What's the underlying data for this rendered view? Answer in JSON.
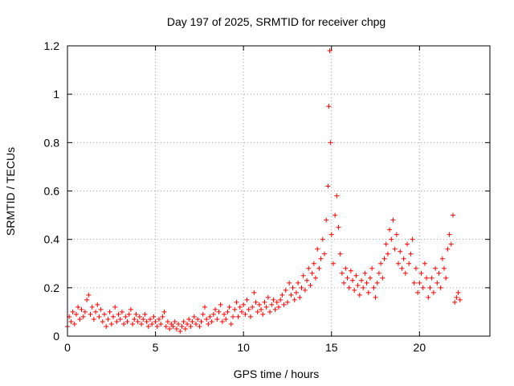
{
  "chart_data": {
    "type": "scatter",
    "title": "Day 197 of 2025, SRMTID for receiver chpg",
    "xlabel": "GPS time / hours",
    "ylabel": "SRMTID / TECUs",
    "xlim": [
      0,
      24
    ],
    "ylim": [
      0,
      1.2
    ],
    "x_ticks": [
      0,
      5,
      10,
      15,
      20
    ],
    "y_ticks": [
      0,
      0.2,
      0.4,
      0.6,
      0.8,
      1,
      1.2
    ],
    "x_tick_labels": [
      "0",
      "5",
      "10",
      "15",
      "20"
    ],
    "y_tick_labels": [
      "0",
      "0.2",
      "0.4",
      "0.6",
      "0.8",
      "1",
      "1.2"
    ],
    "grid": true,
    "marker": "+",
    "color": "#ff0000",
    "series": [
      {
        "name": "chpg",
        "points": [
          [
            0.0,
            0.04
          ],
          [
            0.1,
            0.08
          ],
          [
            0.2,
            0.06
          ],
          [
            0.3,
            0.1
          ],
          [
            0.4,
            0.05
          ],
          [
            0.5,
            0.09
          ],
          [
            0.6,
            0.12
          ],
          [
            0.7,
            0.07
          ],
          [
            0.8,
            0.11
          ],
          [
            0.9,
            0.08
          ],
          [
            1.0,
            0.1
          ],
          [
            1.1,
            0.15
          ],
          [
            1.2,
            0.17
          ],
          [
            1.3,
            0.09
          ],
          [
            1.4,
            0.12
          ],
          [
            1.5,
            0.07
          ],
          [
            1.6,
            0.1
          ],
          [
            1.7,
            0.13
          ],
          [
            1.8,
            0.08
          ],
          [
            1.9,
            0.11
          ],
          [
            2.0,
            0.06
          ],
          [
            2.1,
            0.09
          ],
          [
            2.2,
            0.04
          ],
          [
            2.3,
            0.07
          ],
          [
            2.4,
            0.1
          ],
          [
            2.5,
            0.05
          ],
          [
            2.6,
            0.08
          ],
          [
            2.7,
            0.12
          ],
          [
            2.8,
            0.06
          ],
          [
            2.9,
            0.09
          ],
          [
            3.0,
            0.07
          ],
          [
            3.1,
            0.1
          ],
          [
            3.2,
            0.05
          ],
          [
            3.3,
            0.08
          ],
          [
            3.4,
            0.06
          ],
          [
            3.5,
            0.09
          ],
          [
            3.6,
            0.11
          ],
          [
            3.7,
            0.05
          ],
          [
            3.8,
            0.07
          ],
          [
            3.9,
            0.09
          ],
          [
            4.0,
            0.06
          ],
          [
            4.1,
            0.08
          ],
          [
            4.2,
            0.05
          ],
          [
            4.3,
            0.07
          ],
          [
            4.4,
            0.09
          ],
          [
            4.5,
            0.06
          ],
          [
            4.6,
            0.04
          ],
          [
            4.7,
            0.07
          ],
          [
            4.8,
            0.05
          ],
          [
            4.9,
            0.08
          ],
          [
            5.0,
            0.06
          ],
          [
            5.1,
            0.04
          ],
          [
            5.2,
            0.07
          ],
          [
            5.3,
            0.05
          ],
          [
            5.4,
            0.08
          ],
          [
            5.5,
            0.1
          ],
          [
            5.6,
            0.04
          ],
          [
            5.7,
            0.06
          ],
          [
            5.8,
            0.03
          ],
          [
            5.9,
            0.05
          ],
          [
            6.0,
            0.04
          ],
          [
            6.1,
            0.06
          ],
          [
            6.2,
            0.03
          ],
          [
            6.3,
            0.05
          ],
          [
            6.4,
            0.02
          ],
          [
            6.5,
            0.04
          ],
          [
            6.6,
            0.06
          ],
          [
            6.7,
            0.03
          ],
          [
            6.8,
            0.05
          ],
          [
            6.9,
            0.07
          ],
          [
            7.0,
            0.04
          ],
          [
            7.1,
            0.06
          ],
          [
            7.2,
            0.08
          ],
          [
            7.3,
            0.05
          ],
          [
            7.4,
            0.07
          ],
          [
            7.5,
            0.04
          ],
          [
            7.6,
            0.06
          ],
          [
            7.7,
            0.09
          ],
          [
            7.8,
            0.12
          ],
          [
            7.9,
            0.07
          ],
          [
            8.0,
            0.05
          ],
          [
            8.1,
            0.08
          ],
          [
            8.2,
            0.06
          ],
          [
            8.3,
            0.09
          ],
          [
            8.4,
            0.11
          ],
          [
            8.5,
            0.07
          ],
          [
            8.6,
            0.1
          ],
          [
            8.7,
            0.13
          ],
          [
            8.8,
            0.06
          ],
          [
            8.9,
            0.09
          ],
          [
            9.0,
            0.07
          ],
          [
            9.1,
            0.1
          ],
          [
            9.2,
            0.12
          ],
          [
            9.3,
            0.05
          ],
          [
            9.4,
            0.08
          ],
          [
            9.5,
            0.11
          ],
          [
            9.6,
            0.14
          ],
          [
            9.7,
            0.08
          ],
          [
            9.8,
            0.12
          ],
          [
            9.9,
            0.1
          ],
          [
            10.0,
            0.13
          ],
          [
            10.1,
            0.09
          ],
          [
            10.2,
            0.15
          ],
          [
            10.3,
            0.11
          ],
          [
            10.4,
            0.08
          ],
          [
            10.5,
            0.12
          ],
          [
            10.6,
            0.18
          ],
          [
            10.7,
            0.14
          ],
          [
            10.8,
            0.1
          ],
          [
            10.9,
            0.13
          ],
          [
            11.0,
            0.11
          ],
          [
            11.1,
            0.09
          ],
          [
            11.2,
            0.14
          ],
          [
            11.3,
            0.12
          ],
          [
            11.4,
            0.16
          ],
          [
            11.5,
            0.1
          ],
          [
            11.6,
            0.13
          ],
          [
            11.7,
            0.15
          ],
          [
            11.8,
            0.11
          ],
          [
            11.9,
            0.14
          ],
          [
            12.0,
            0.12
          ],
          [
            12.1,
            0.15
          ],
          [
            12.2,
            0.17
          ],
          [
            12.3,
            0.13
          ],
          [
            12.4,
            0.19
          ],
          [
            12.5,
            0.14
          ],
          [
            12.6,
            0.22
          ],
          [
            12.7,
            0.17
          ],
          [
            12.8,
            0.2
          ],
          [
            12.9,
            0.15
          ],
          [
            13.0,
            0.18
          ],
          [
            13.1,
            0.22
          ],
          [
            13.2,
            0.16
          ],
          [
            13.3,
            0.2
          ],
          [
            13.4,
            0.25
          ],
          [
            13.5,
            0.19
          ],
          [
            13.6,
            0.23
          ],
          [
            13.7,
            0.28
          ],
          [
            13.8,
            0.21
          ],
          [
            13.9,
            0.26
          ],
          [
            14.0,
            0.3
          ],
          [
            14.1,
            0.24
          ],
          [
            14.2,
            0.36
          ],
          [
            14.3,
            0.28
          ],
          [
            14.4,
            0.32
          ],
          [
            14.5,
            0.4
          ],
          [
            14.6,
            0.34
          ],
          [
            14.7,
            0.48
          ],
          [
            14.8,
            0.62
          ],
          [
            14.85,
            0.95
          ],
          [
            14.9,
            1.18
          ],
          [
            14.95,
            0.8
          ],
          [
            15.0,
            0.42
          ],
          [
            15.1,
            0.3
          ],
          [
            15.2,
            0.5
          ],
          [
            15.3,
            0.58
          ],
          [
            15.4,
            0.45
          ],
          [
            15.5,
            0.34
          ],
          [
            15.6,
            0.26
          ],
          [
            15.7,
            0.22
          ],
          [
            15.8,
            0.28
          ],
          [
            15.9,
            0.24
          ],
          [
            16.0,
            0.2
          ],
          [
            16.1,
            0.27
          ],
          [
            16.2,
            0.23
          ],
          [
            16.3,
            0.19
          ],
          [
            16.4,
            0.25
          ],
          [
            16.5,
            0.21
          ],
          [
            16.6,
            0.17
          ],
          [
            16.7,
            0.23
          ],
          [
            16.8,
            0.2
          ],
          [
            16.9,
            0.26
          ],
          [
            17.0,
            0.22
          ],
          [
            17.1,
            0.18
          ],
          [
            17.2,
            0.24
          ],
          [
            17.3,
            0.28
          ],
          [
            17.4,
            0.2
          ],
          [
            17.5,
            0.16
          ],
          [
            17.6,
            0.22
          ],
          [
            17.7,
            0.26
          ],
          [
            17.8,
            0.3
          ],
          [
            17.9,
            0.24
          ],
          [
            18.0,
            0.32
          ],
          [
            18.1,
            0.38
          ],
          [
            18.2,
            0.34
          ],
          [
            18.3,
            0.44
          ],
          [
            18.4,
            0.4
          ],
          [
            18.5,
            0.48
          ],
          [
            18.6,
            0.36
          ],
          [
            18.7,
            0.42
          ],
          [
            18.8,
            0.3
          ],
          [
            18.9,
            0.35
          ],
          [
            19.0,
            0.28
          ],
          [
            19.1,
            0.32
          ],
          [
            19.2,
            0.26
          ],
          [
            19.3,
            0.38
          ],
          [
            19.4,
            0.3
          ],
          [
            19.5,
            0.34
          ],
          [
            19.6,
            0.4
          ],
          [
            19.7,
            0.22
          ],
          [
            19.8,
            0.28
          ],
          [
            19.9,
            0.18
          ],
          [
            20.0,
            0.22
          ],
          [
            20.1,
            0.26
          ],
          [
            20.2,
            0.2
          ],
          [
            20.3,
            0.3
          ],
          [
            20.4,
            0.24
          ],
          [
            20.5,
            0.16
          ],
          [
            20.6,
            0.2
          ],
          [
            20.7,
            0.24
          ],
          [
            20.8,
            0.18
          ],
          [
            20.9,
            0.28
          ],
          [
            21.0,
            0.22
          ],
          [
            21.1,
            0.26
          ],
          [
            21.2,
            0.2
          ],
          [
            21.3,
            0.32
          ],
          [
            21.4,
            0.28
          ],
          [
            21.5,
            0.24
          ],
          [
            21.6,
            0.36
          ],
          [
            21.7,
            0.42
          ],
          [
            21.8,
            0.38
          ],
          [
            21.9,
            0.5
          ],
          [
            22.0,
            0.14
          ],
          [
            22.1,
            0.16
          ],
          [
            22.2,
            0.18
          ],
          [
            22.3,
            0.15
          ]
        ]
      }
    ]
  }
}
